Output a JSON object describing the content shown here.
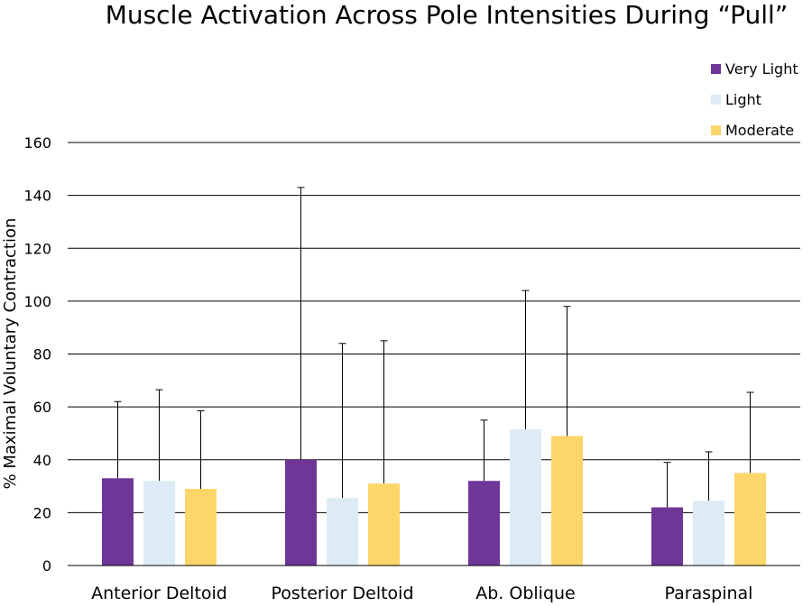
{
  "chart_data": {
    "type": "bar",
    "title": "Muscle Activation Across Pole Intensities During “Pull”",
    "xlabel": "",
    "ylabel": "% Maximal Voluntary Contraction",
    "ylim": [
      0,
      160
    ],
    "yticks": [
      0,
      20,
      40,
      60,
      80,
      100,
      120,
      140,
      160
    ],
    "grid": true,
    "legend_position": "top-right",
    "categories": [
      "Anterior Deltoid",
      "Posterior Deltoid",
      "Ab. Oblique",
      "Paraspinal"
    ],
    "series": [
      {
        "name": "Very Light",
        "color": "#6f3597",
        "values": [
          33,
          40,
          32,
          22
        ],
        "error_upper": [
          62,
          143,
          55,
          39
        ]
      },
      {
        "name": "Light",
        "color": "#dcebf5",
        "values": [
          32,
          25.5,
          51.5,
          24.5
        ],
        "error_upper": [
          66.5,
          84,
          104,
          43
        ]
      },
      {
        "name": "Moderate",
        "color": "#fdd66a",
        "values": [
          29,
          31,
          49,
          35
        ],
        "error_upper": [
          58.5,
          85,
          98,
          65.5
        ]
      }
    ]
  }
}
